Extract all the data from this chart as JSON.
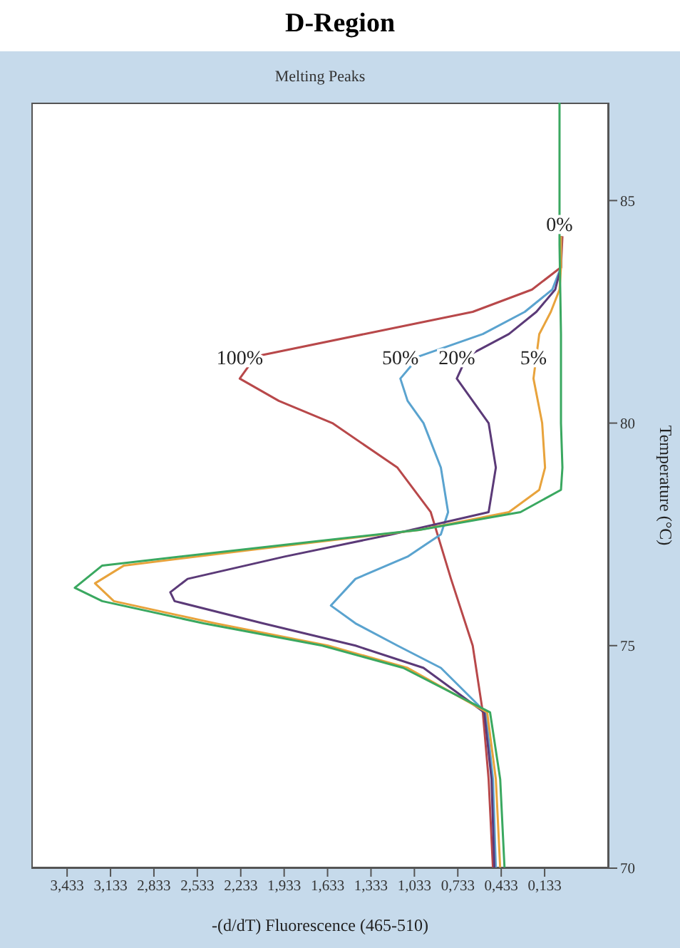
{
  "chart_data": {
    "type": "line",
    "orientation": "horizontal",
    "title": "D-Region",
    "subtitle": "Melting Peaks",
    "xlabel": "-(d/dT) Fluorescence (465-510)",
    "ylabel": "Temperature (°C)",
    "ylim": [
      70,
      87.2
    ],
    "yticks": [
      70,
      75,
      80,
      85
    ],
    "xlim": [
      3.68,
      -0.31
    ],
    "xticks": [
      {
        "value": 3.433,
        "label": "3,433"
      },
      {
        "value": 3.133,
        "label": "3,133"
      },
      {
        "value": 2.833,
        "label": "2,833"
      },
      {
        "value": 2.533,
        "label": "2,533"
      },
      {
        "value": 2.233,
        "label": "2,233"
      },
      {
        "value": 1.933,
        "label": "1,933"
      },
      {
        "value": 1.633,
        "label": "1,633"
      },
      {
        "value": 1.333,
        "label": "1,333"
      },
      {
        "value": 1.033,
        "label": "1,033"
      },
      {
        "value": 0.733,
        "label": "0,733"
      },
      {
        "value": 0.433,
        "label": "0,433"
      },
      {
        "value": 0.133,
        "label": "0,133"
      }
    ],
    "grid": false,
    "marker": "none",
    "line_style": "solid",
    "series": [
      {
        "name": "100%",
        "color": "#b8484a",
        "x": [
          70,
          72,
          73.5,
          75,
          76.5,
          78,
          79,
          80,
          80.5,
          81,
          81.5,
          82,
          82.5,
          83,
          83.5,
          84.2
        ],
        "values": [
          0.49,
          0.52,
          0.56,
          0.63,
          0.78,
          0.92,
          1.15,
          1.6,
          1.97,
          2.24,
          2.13,
          1.38,
          0.63,
          0.22,
          0.02,
          0.01
        ]
      },
      {
        "name": "50%",
        "color": "#5aa3cf",
        "x": [
          70,
          72,
          73.5,
          74.5,
          75,
          75.5,
          75.9,
          76.5,
          77,
          77.5,
          78,
          79,
          80,
          80.5,
          81,
          81.5,
          82,
          82.5,
          83,
          83.5,
          84.2
        ],
        "values": [
          0.47,
          0.49,
          0.54,
          0.85,
          1.15,
          1.44,
          1.61,
          1.44,
          1.08,
          0.85,
          0.8,
          0.85,
          0.97,
          1.08,
          1.13,
          1.0,
          0.56,
          0.27,
          0.08,
          0.02,
          0.02
        ]
      },
      {
        "name": "20%",
        "color": "#5b3a78",
        "x": [
          70,
          72,
          73.5,
          74.5,
          75,
          75.5,
          76,
          76.2,
          76.5,
          77,
          77.5,
          78,
          79,
          80,
          80.5,
          81,
          81.5,
          82,
          82.5,
          83,
          83.5,
          84.2
        ],
        "values": [
          0.48,
          0.5,
          0.55,
          0.97,
          1.44,
          2.08,
          2.69,
          2.72,
          2.6,
          1.93,
          1.19,
          0.52,
          0.47,
          0.52,
          0.63,
          0.74,
          0.67,
          0.38,
          0.19,
          0.06,
          0.02,
          0.02
        ]
      },
      {
        "name": "5%",
        "color": "#e8a33c",
        "x": [
          70,
          72,
          73.5,
          74.5,
          75,
          75.5,
          76,
          76.4,
          76.8,
          77.2,
          77.6,
          78,
          78.5,
          79,
          80,
          81,
          82,
          82.5,
          83,
          83.5,
          84.2
        ],
        "values": [
          0.44,
          0.47,
          0.53,
          1.08,
          1.63,
          2.41,
          3.11,
          3.24,
          3.04,
          2.04,
          1.0,
          0.38,
          0.17,
          0.13,
          0.15,
          0.21,
          0.17,
          0.09,
          0.03,
          0.02,
          0.02
        ]
      },
      {
        "name": "0%",
        "color": "#3aa860",
        "x": [
          70,
          72,
          73.5,
          74.5,
          75,
          75.5,
          76,
          76.3,
          76.8,
          77.2,
          77.6,
          78,
          78.5,
          79,
          80,
          82,
          84,
          86,
          87.2
        ],
        "values": [
          0.41,
          0.44,
          0.51,
          1.11,
          1.67,
          2.49,
          3.19,
          3.38,
          3.19,
          2.11,
          1.0,
          0.3,
          0.02,
          0.01,
          0.02,
          0.02,
          0.03,
          0.03,
          0.03
        ]
      }
    ]
  }
}
